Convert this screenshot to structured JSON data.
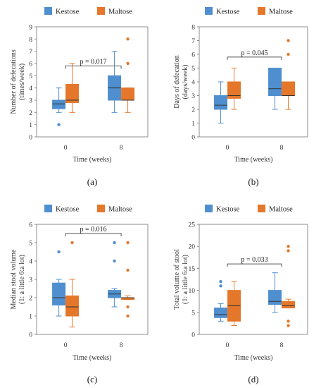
{
  "colors": {
    "kestose": "#4f8fcf",
    "maltose": "#e5772a",
    "axis": "#8c8c8c",
    "bracket": "#555555"
  },
  "chart_data": [
    {
      "type": "box",
      "panel_label": "(a)",
      "ylabel_lines": [
        "Number of defecations",
        "(times/week)"
      ],
      "xlabel": "Time (weeks)",
      "ylim": [
        0,
        9
      ],
      "yticks": [
        "0",
        "1",
        "2",
        "3",
        "4",
        "5",
        "6",
        "7",
        "8",
        "9"
      ],
      "categories": [
        "0",
        "8"
      ],
      "legend": [
        "Kestose",
        "Maltose"
      ],
      "series": [
        {
          "name": "Kestose",
          "boxes": [
            {
              "min": 2,
              "q1": 2.3,
              "median": 2.7,
              "q3": 3.0,
              "max": 4,
              "outliers": [
                1
              ]
            },
            {
              "min": 2,
              "q1": 3.0,
              "median": 4.0,
              "q3": 5.0,
              "max": 7,
              "outliers": []
            }
          ]
        },
        {
          "name": "Maltose",
          "boxes": [
            {
              "min": 2,
              "q1": 2.8,
              "median": 3.0,
              "q3": 4.3,
              "max": 6,
              "outliers": []
            },
            {
              "min": 2,
              "q1": 3.0,
              "median": 3.0,
              "q3": 4.0,
              "max": 4,
              "outliers": [
                6,
                8
              ]
            }
          ]
        }
      ],
      "bracket": {
        "text": "p = 0.017",
        "from": 0,
        "to": 1,
        "y": 5.8
      }
    },
    {
      "type": "box",
      "panel_label": "(b)",
      "ylabel_lines": [
        "Days of defecation",
        "(days/week)"
      ],
      "xlabel": "Time (weeks)",
      "ylim": [
        0,
        8
      ],
      "yticks": [
        "0",
        "1",
        "2",
        "3",
        "4",
        "5",
        "6",
        "7",
        "8"
      ],
      "categories": [
        "0",
        "8"
      ],
      "legend": [
        "Kestose",
        "Maltose"
      ],
      "series": [
        {
          "name": "Kestose",
          "boxes": [
            {
              "min": 1,
              "q1": 2.0,
              "median": 2.3,
              "q3": 3.0,
              "max": 4,
              "outliers": []
            },
            {
              "min": 2,
              "q1": 3.0,
              "median": 3.5,
              "q3": 5.0,
              "max": 5,
              "outliers": []
            }
          ]
        },
        {
          "name": "Maltose",
          "boxes": [
            {
              "min": 2,
              "q1": 2.8,
              "median": 3.0,
              "q3": 4.0,
              "max": 5,
              "outliers": []
            },
            {
              "min": 2,
              "q1": 3.0,
              "median": 3.0,
              "q3": 4.0,
              "max": 4,
              "outliers": [
                6,
                7
              ]
            }
          ]
        }
      ],
      "bracket": {
        "text": "p = 0.045",
        "from": 0,
        "to": 1,
        "y": 5.8
      }
    },
    {
      "type": "box",
      "panel_label": "(c)",
      "ylabel_lines": [
        "Median stool volume",
        "(1: a little 6:a lot)"
      ],
      "xlabel": "Time (weeks)",
      "ylim": [
        0,
        6
      ],
      "yticks": [
        "0",
        "1",
        "2",
        "3",
        "4",
        "5",
        "6"
      ],
      "categories": [
        "0",
        "8"
      ],
      "legend": [
        "Kestose",
        "Maltose"
      ],
      "series": [
        {
          "name": "Kestose",
          "boxes": [
            {
              "min": 1,
              "q1": 1.6,
              "median": 2.0,
              "q3": 2.8,
              "max": 3,
              "outliers": [
                4.5
              ]
            },
            {
              "min": 1.5,
              "q1": 2.0,
              "median": 2.2,
              "q3": 2.4,
              "max": 2.5,
              "outliers": [
                4,
                5
              ]
            }
          ]
        },
        {
          "name": "Maltose",
          "boxes": [
            {
              "min": 0.4,
              "q1": 1.0,
              "median": 1.5,
              "q3": 2.1,
              "max": 3,
              "outliers": [
                5
              ]
            },
            {
              "min": 1.9,
              "q1": 1.9,
              "median": 2.0,
              "q3": 2.0,
              "max": 2.1,
              "outliers": [
                1,
                1.5,
                3.5,
                5
              ]
            }
          ]
        }
      ],
      "bracket": {
        "text": "p = 0.016",
        "from": 1,
        "to": 3,
        "y": 5.5
      }
    },
    {
      "type": "box",
      "panel_label": "(d)",
      "ylabel_lines": [
        "Total volume of stool",
        "(1: a little 6:a lot)"
      ],
      "xlabel": "Time (weeks)",
      "ylim": [
        0,
        25
      ],
      "yticks": [
        "0",
        "5",
        "10",
        "15",
        "20",
        "25"
      ],
      "categories": [
        "0",
        "8"
      ],
      "legend": [
        "Kestose",
        "Maltose"
      ],
      "series": [
        {
          "name": "Kestose",
          "boxes": [
            {
              "min": 3,
              "q1": 3.8,
              "median": 4.5,
              "q3": 6.0,
              "max": 7,
              "outliers": [
                11,
                12
              ]
            },
            {
              "min": 5,
              "q1": 6.8,
              "median": 7.5,
              "q3": 10.0,
              "max": 14,
              "outliers": []
            }
          ]
        },
        {
          "name": "Maltose",
          "boxes": [
            {
              "min": 2,
              "q1": 3.0,
              "median": 6.5,
              "q3": 10.0,
              "max": 12,
              "outliers": []
            },
            {
              "min": 6,
              "q1": 6.0,
              "median": 6.5,
              "q3": 7.5,
              "max": 8,
              "outliers": [
                2,
                3,
                19,
                20
              ]
            }
          ]
        }
      ],
      "bracket": {
        "text": "p = 0.033",
        "from": 0,
        "to": 1,
        "y": 16
      }
    }
  ]
}
